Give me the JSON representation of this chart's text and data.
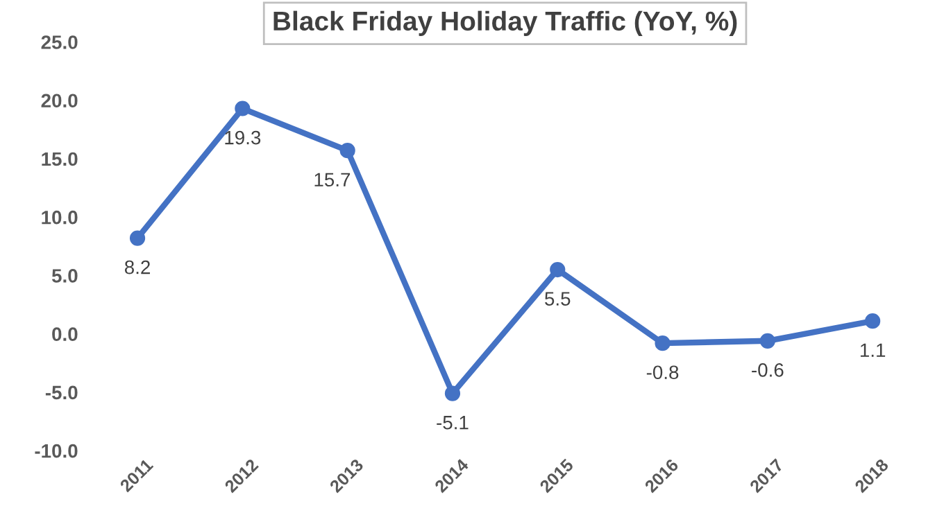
{
  "chart_data": {
    "type": "line",
    "title": "Black Friday Holiday Traffic (YoY, %)",
    "categories": [
      "2011",
      "2012",
      "2013",
      "2014",
      "2015",
      "2016",
      "2017",
      "2018"
    ],
    "series": [
      {
        "color": "#4472c4",
        "values": [
          8.2,
          19.3,
          15.7,
          -5.1,
          5.5,
          -0.8,
          -0.6,
          1.1
        ]
      }
    ],
    "ylim": [
      -10,
      25
    ],
    "yticks": [
      {
        "value": -10,
        "label": "-10.0"
      },
      {
        "value": -5,
        "label": "-5.0"
      },
      {
        "value": 0,
        "label": "0.0"
      },
      {
        "value": 5,
        "label": "5.0"
      },
      {
        "value": 10,
        "label": "10.0"
      },
      {
        "value": 15,
        "label": "15.0"
      },
      {
        "value": 20,
        "label": "20.0"
      },
      {
        "value": 25,
        "label": "25.0"
      }
    ],
    "data_labels": true,
    "marker": "circle",
    "line_style": "solid",
    "grid": false,
    "legend": false
  }
}
